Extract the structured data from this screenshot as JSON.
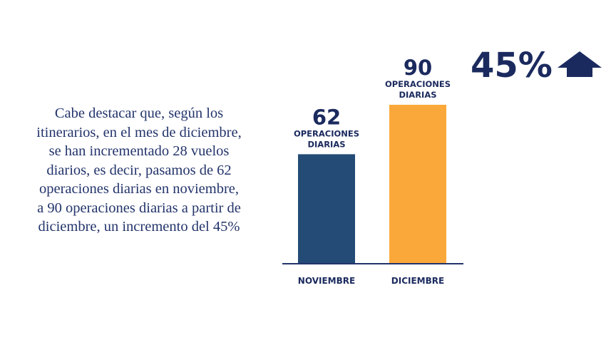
{
  "paragraph": [
    "Cabe destacar que, según los",
    "itinerarios, en el mes de diciembre,",
    "se han incrementado 28 vuelos",
    "diarios, es decir, pasamos de 62",
    "operaciones diarias en noviembre,",
    "a 90 operaciones diarias a partir de",
    "diciembre, un incremento del 45%"
  ],
  "badge": {
    "text": "45%",
    "icon": "arrow-up-icon",
    "color": "#1b2a5e"
  },
  "chart_data": {
    "type": "bar",
    "categories": [
      "NOVIEMBRE",
      "DICIEMBRE"
    ],
    "values": [
      62,
      90
    ],
    "value_labels": [
      "62",
      "90"
    ],
    "sub_labels": [
      [
        "OPERACIONES",
        "DIARIAS"
      ],
      [
        "OPERACIONES",
        "DIARIAS"
      ]
    ],
    "colors": [
      "#234b75",
      "#fba83a"
    ],
    "ylim": [
      0,
      90
    ],
    "title": "",
    "xlabel": "",
    "ylabel": "",
    "grid": false,
    "legend": "none"
  }
}
